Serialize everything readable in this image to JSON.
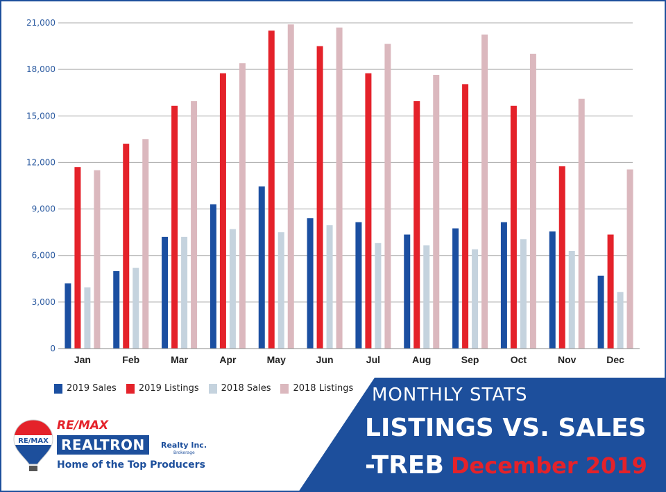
{
  "chart_data": {
    "type": "bar",
    "categories": [
      "Jan",
      "Feb",
      "Mar",
      "Apr",
      "May",
      "Jun",
      "Jul",
      "Aug",
      "Sep",
      "Oct",
      "Nov",
      "Dec"
    ],
    "series": [
      {
        "name": "2019 Sales",
        "color": "#1b4fa1",
        "values": [
          4200,
          5000,
          7200,
          9300,
          10450,
          8400,
          8150,
          7350,
          7750,
          8150,
          7550,
          4700
        ]
      },
      {
        "name": "2019 Listings",
        "color": "#e4222a",
        "values": [
          11700,
          13200,
          15650,
          17750,
          20500,
          19500,
          17750,
          15950,
          17050,
          15650,
          11750,
          7350
        ]
      },
      {
        "name": "2018 Sales",
        "color": "#c5d3de",
        "values": [
          3950,
          5200,
          7200,
          7700,
          7500,
          7950,
          6800,
          6650,
          6400,
          7050,
          6300,
          3650
        ]
      },
      {
        "name": "2018 Listings",
        "color": "#dbb8be",
        "values": [
          11500,
          13500,
          15950,
          18400,
          20900,
          20700,
          19650,
          17650,
          20250,
          19000,
          16100,
          11550
        ]
      }
    ],
    "yticks": [
      "0",
      "3,000",
      "6,000",
      "9,000",
      "12,000",
      "15,000",
      "18,000",
      "21,000"
    ],
    "ylim": [
      0,
      21000
    ],
    "grid": true,
    "legend_position": "bottom-left",
    "title": "",
    "xlabel": "",
    "ylabel": ""
  },
  "banner": {
    "subtitle": "MONTHLY STATS",
    "title_line1": "LISTINGS VS. SALES",
    "title_line2": "-TREB",
    "date": "December 2019",
    "bg_color": "#1d4f9c"
  },
  "logo": {
    "balloon_text": "RE/MAX",
    "brand": "RE/MAX",
    "company": "REALTRON",
    "suffix": "Realty Inc.",
    "brokerage": "Brokerage",
    "tagline": "Home of the Top Producers"
  }
}
